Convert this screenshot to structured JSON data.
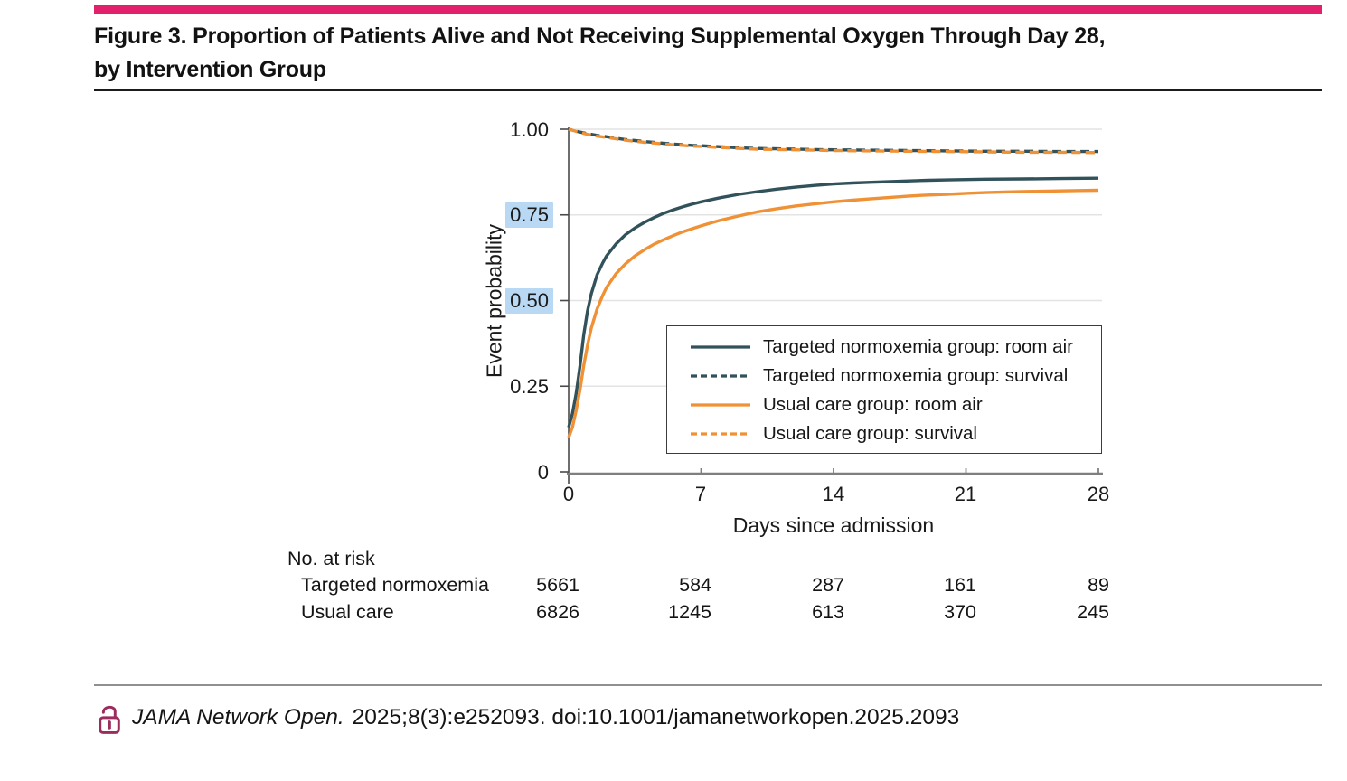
{
  "accent": {
    "brand_pink": "#e2206c",
    "lock_pink": "#9d2c5e",
    "highlight_blue": "#b9d8f3",
    "grid_gray": "#e3e3e3",
    "axis_gray": "#4a4a4a",
    "x_axis_gray": "#7f7f7f"
  },
  "figure": {
    "title_line1": "Figure 3. Proportion of Patients Alive and Not Receiving Supplemental Oxygen Through Day 28,",
    "title_line2": "by Intervention Group"
  },
  "chart_data": {
    "type": "line",
    "title": "",
    "xlabel": "Days since admission",
    "ylabel": "Event probability",
    "xlim": [
      0,
      28
    ],
    "ylim": [
      0,
      1.0
    ],
    "grid": "horizontal",
    "legend_position": "inside-lower-right-box",
    "x_ticks": [
      {
        "label": "0",
        "value": 0
      },
      {
        "label": "7",
        "value": 7
      },
      {
        "label": "14",
        "value": 14
      },
      {
        "label": "21",
        "value": 21
      },
      {
        "label": "28",
        "value": 28
      }
    ],
    "y_ticks": [
      {
        "label": "1.00",
        "value": 1.0,
        "highlighted": false
      },
      {
        "label": "0.75",
        "value": 0.75,
        "highlighted": true
      },
      {
        "label": "0.50",
        "value": 0.5,
        "highlighted": true
      },
      {
        "label": "0.25",
        "value": 0.25,
        "highlighted": false
      },
      {
        "label": "0",
        "value": 0,
        "highlighted": false
      }
    ],
    "series": [
      {
        "name": "Targeted normoxemia group: room air",
        "color": "#31525a",
        "style": "solid",
        "points": [
          [
            0,
            0.13
          ],
          [
            0.2,
            0.17
          ],
          [
            0.4,
            0.23
          ],
          [
            0.6,
            0.31
          ],
          [
            0.8,
            0.4
          ],
          [
            1,
            0.47
          ],
          [
            1.2,
            0.52
          ],
          [
            1.5,
            0.575
          ],
          [
            1.8,
            0.61
          ],
          [
            2,
            0.63
          ],
          [
            2.5,
            0.665
          ],
          [
            3,
            0.692
          ],
          [
            3.5,
            0.712
          ],
          [
            4,
            0.728
          ],
          [
            4.5,
            0.742
          ],
          [
            5,
            0.754
          ],
          [
            5.5,
            0.764
          ],
          [
            6,
            0.773
          ],
          [
            6.5,
            0.781
          ],
          [
            7,
            0.788
          ],
          [
            7.5,
            0.794
          ],
          [
            8,
            0.8
          ],
          [
            9,
            0.81
          ],
          [
            10,
            0.818
          ],
          [
            11,
            0.825
          ],
          [
            12,
            0.831
          ],
          [
            13,
            0.836
          ],
          [
            14,
            0.84
          ],
          [
            15,
            0.843
          ],
          [
            16,
            0.845
          ],
          [
            17,
            0.847
          ],
          [
            18,
            0.849
          ],
          [
            19,
            0.851
          ],
          [
            20,
            0.852
          ],
          [
            21,
            0.853
          ],
          [
            22,
            0.854
          ],
          [
            24,
            0.855
          ],
          [
            26,
            0.856
          ],
          [
            28,
            0.857
          ]
        ]
      },
      {
        "name": "Targeted normoxemia group: survival",
        "color": "#31525a",
        "style": "dashed",
        "points": [
          [
            0,
            1
          ],
          [
            0.5,
            0.993
          ],
          [
            1,
            0.987
          ],
          [
            1.5,
            0.982
          ],
          [
            2,
            0.978
          ],
          [
            2.5,
            0.974
          ],
          [
            3,
            0.97
          ],
          [
            3.5,
            0.967
          ],
          [
            4,
            0.964
          ],
          [
            4.5,
            0.962
          ],
          [
            5,
            0.959
          ],
          [
            5.5,
            0.957
          ],
          [
            6,
            0.955
          ],
          [
            6.5,
            0.953
          ],
          [
            7,
            0.952
          ],
          [
            8,
            0.949
          ],
          [
            9,
            0.946
          ],
          [
            10,
            0.944
          ],
          [
            11,
            0.943
          ],
          [
            12,
            0.942
          ],
          [
            13,
            0.941
          ],
          [
            14,
            0.94
          ],
          [
            16,
            0.939
          ],
          [
            18,
            0.938
          ],
          [
            20,
            0.937
          ],
          [
            22,
            0.936
          ],
          [
            24,
            0.936
          ],
          [
            26,
            0.935
          ],
          [
            28,
            0.935
          ]
        ]
      },
      {
        "name": "Usual care group: room air",
        "color": "#ef9134",
        "style": "solid",
        "points": [
          [
            0,
            0.1
          ],
          [
            0.2,
            0.13
          ],
          [
            0.4,
            0.18
          ],
          [
            0.6,
            0.24
          ],
          [
            0.8,
            0.31
          ],
          [
            1,
            0.37
          ],
          [
            1.2,
            0.42
          ],
          [
            1.5,
            0.475
          ],
          [
            1.8,
            0.515
          ],
          [
            2,
            0.538
          ],
          [
            2.5,
            0.578
          ],
          [
            3,
            0.607
          ],
          [
            3.5,
            0.63
          ],
          [
            4,
            0.648
          ],
          [
            4.5,
            0.664
          ],
          [
            5,
            0.677
          ],
          [
            5.5,
            0.689
          ],
          [
            6,
            0.7
          ],
          [
            6.5,
            0.709
          ],
          [
            7,
            0.718
          ],
          [
            7.5,
            0.726
          ],
          [
            8,
            0.734
          ],
          [
            9,
            0.747
          ],
          [
            10,
            0.759
          ],
          [
            11,
            0.768
          ],
          [
            12,
            0.776
          ],
          [
            13,
            0.782
          ],
          [
            14,
            0.788
          ],
          [
            15,
            0.793
          ],
          [
            16,
            0.797
          ],
          [
            17,
            0.801
          ],
          [
            18,
            0.805
          ],
          [
            19,
            0.808
          ],
          [
            20,
            0.81
          ],
          [
            21,
            0.813
          ],
          [
            22,
            0.815
          ],
          [
            23,
            0.817
          ],
          [
            24,
            0.818
          ],
          [
            25,
            0.819
          ],
          [
            26,
            0.82
          ],
          [
            27,
            0.821
          ],
          [
            28,
            0.822
          ]
        ]
      },
      {
        "name": "Usual care group: survival",
        "color": "#ef9134",
        "style": "dashed",
        "points": [
          [
            0,
            1
          ],
          [
            0.5,
            0.992
          ],
          [
            1,
            0.985
          ],
          [
            1.5,
            0.98
          ],
          [
            2,
            0.976
          ],
          [
            2.5,
            0.972
          ],
          [
            3,
            0.968
          ],
          [
            3.5,
            0.965
          ],
          [
            4,
            0.962
          ],
          [
            4.5,
            0.96
          ],
          [
            5,
            0.957
          ],
          [
            5.5,
            0.955
          ],
          [
            6,
            0.953
          ],
          [
            6.5,
            0.951
          ],
          [
            7,
            0.95
          ],
          [
            8,
            0.947
          ],
          [
            9,
            0.944
          ],
          [
            10,
            0.942
          ],
          [
            11,
            0.941
          ],
          [
            12,
            0.94
          ],
          [
            13,
            0.939
          ],
          [
            14,
            0.938
          ],
          [
            16,
            0.937
          ],
          [
            18,
            0.936
          ],
          [
            20,
            0.935
          ],
          [
            22,
            0.934
          ],
          [
            24,
            0.933
          ],
          [
            26,
            0.933
          ],
          [
            28,
            0.932
          ]
        ]
      }
    ]
  },
  "risk_table": {
    "title": "No. at risk",
    "columns": [
      0,
      7,
      14,
      21,
      28
    ],
    "rows": [
      {
        "label": "Targeted normoxemia",
        "values": [
          "5661",
          "584",
          "287",
          "161",
          "89"
        ]
      },
      {
        "label": "Usual care",
        "values": [
          "6826",
          "1245",
          "613",
          "370",
          "245"
        ]
      }
    ]
  },
  "footer": {
    "journal": "JAMA Network Open.",
    "citation": "2025;8(3):e252093. doi:10.1001/jamanetworkopen.2025.2093"
  }
}
